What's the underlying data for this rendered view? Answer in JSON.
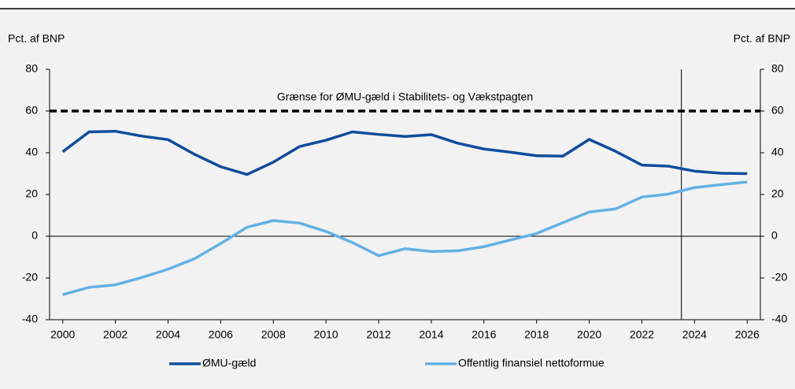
{
  "chart_data": {
    "type": "line",
    "ylabel": "Pct. af BNP",
    "y2label": "Pct. af BNP",
    "x": [
      2000,
      2001,
      2002,
      2003,
      2004,
      2005,
      2006,
      2007,
      2008,
      2009,
      2010,
      2011,
      2012,
      2013,
      2014,
      2015,
      2016,
      2017,
      2018,
      2019,
      2020,
      2021,
      2022,
      2023,
      2024,
      2025,
      2026
    ],
    "xlim": [
      1999.5,
      2026.5
    ],
    "xticks": [
      2000,
      2002,
      2004,
      2006,
      2008,
      2010,
      2012,
      2014,
      2016,
      2018,
      2020,
      2022,
      2024,
      2026
    ],
    "ylim": [
      -40,
      80
    ],
    "yticks": [
      -40,
      -20,
      0,
      20,
      40,
      60,
      80
    ],
    "y2lim": [
      -40,
      80
    ],
    "y2ticks": [
      -40,
      -20,
      0,
      20,
      40,
      60,
      80
    ],
    "series": [
      {
        "name": "ØMU-gæld",
        "color": "#0f4c9c",
        "values": [
          40.5,
          50,
          50.3,
          48,
          46.3,
          39.3,
          33.3,
          29.6,
          35.5,
          43,
          46,
          50,
          48.8,
          47.8,
          48.7,
          44.6,
          41.8,
          40.3,
          38.6,
          38.4,
          46.4,
          40.7,
          34.1,
          33.6,
          31.2,
          30.2,
          30
        ]
      },
      {
        "name": "Offentlig finansiel nettoformue",
        "color": "#63b1e5",
        "values": [
          -28,
          -24.5,
          -23.3,
          -19.8,
          -15.8,
          -10.8,
          -3.5,
          4.3,
          7.5,
          6.3,
          2.3,
          -3,
          -9.3,
          -6,
          -7.3,
          -7,
          -5,
          -1.8,
          1.3,
          6.5,
          11.6,
          13.1,
          18.8,
          20.2,
          23.3,
          24.7,
          26
        ]
      }
    ],
    "reference_line": {
      "value": 60,
      "label": "Grænse for ØMU-gæld i Stabilitets- og Vækstpagten"
    },
    "vline": 2023.5
  }
}
